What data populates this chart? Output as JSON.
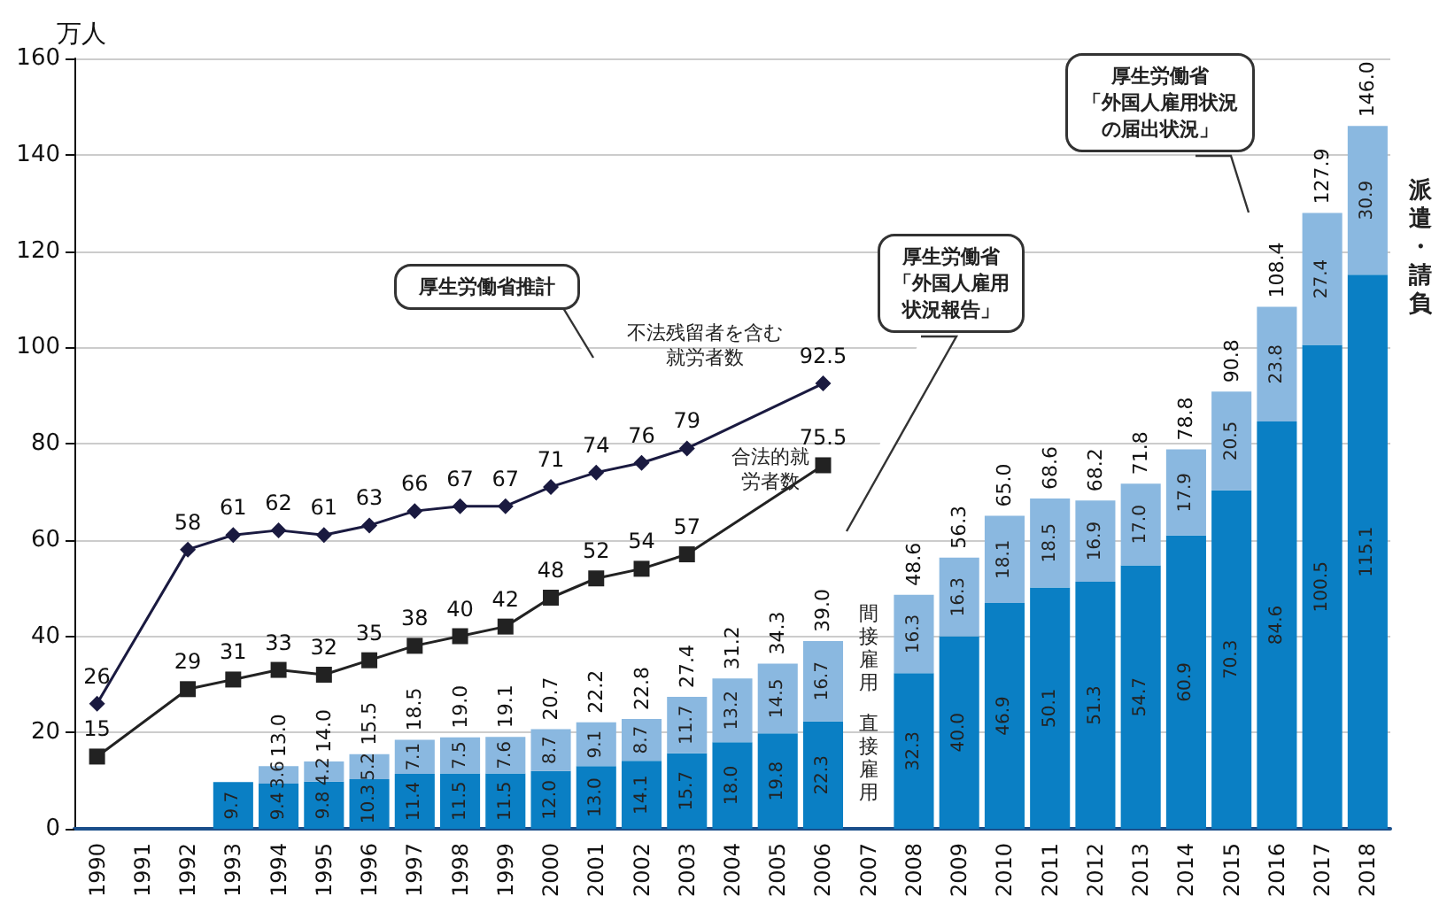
{
  "chart_data": {
    "type": "bar",
    "stacked": true,
    "ylabel": "万人",
    "categories": [
      "1990",
      "1991",
      "1992",
      "1993",
      "1994",
      "1995",
      "1996",
      "1997",
      "1998",
      "1999",
      "2000",
      "2001",
      "2002",
      "2003",
      "2004",
      "2005",
      "2006",
      "2007",
      "2008",
      "2009",
      "2010",
      "2011",
      "2012",
      "2013",
      "2014",
      "2015",
      "2016",
      "2017",
      "2018"
    ],
    "ylim": [
      0,
      160
    ],
    "yticks": [
      0,
      20,
      40,
      60,
      80,
      100,
      120,
      140,
      160
    ],
    "grid": "y",
    "legend": false,
    "series": [
      {
        "name": "直接雇用",
        "color": "#0a7fc4",
        "values": [
          null,
          null,
          null,
          9.7,
          9.4,
          9.8,
          10.3,
          11.4,
          11.5,
          11.5,
          12.0,
          13.0,
          14.1,
          15.7,
          18.0,
          19.8,
          22.3,
          null,
          32.3,
          40.0,
          46.9,
          50.1,
          51.3,
          54.7,
          60.9,
          70.3,
          84.6,
          100.5,
          115.1
        ],
        "value_labels": [
          null,
          null,
          null,
          "9.7",
          "9.4",
          "9.8",
          "10.3",
          "11.4",
          "11.5",
          "11.5",
          "12.0",
          "13.0",
          "14.1",
          "15.7",
          "18.0",
          "19.8",
          "22.3",
          null,
          "32.3",
          "40.0",
          "46.9",
          "50.1",
          "51.3",
          "54.7",
          "60.9",
          "70.3",
          "84.6",
          "100.5",
          "115.1"
        ]
      },
      {
        "name": "間接雇用",
        "color": "#8ab8e0",
        "values": [
          null,
          null,
          null,
          null,
          3.6,
          4.2,
          5.2,
          7.1,
          7.5,
          7.6,
          8.7,
          9.1,
          8.7,
          11.7,
          13.2,
          14.5,
          16.7,
          null,
          16.3,
          16.3,
          18.1,
          18.5,
          16.9,
          17.0,
          17.9,
          20.5,
          23.8,
          27.4,
          30.9
        ],
        "value_labels": [
          null,
          null,
          null,
          null,
          "3.6",
          "4.2",
          "5.2",
          "7.1",
          "7.5",
          "7.6",
          "8.7",
          "9.1",
          "8.7",
          "11.7",
          "13.2",
          "14.5",
          "16.7",
          null,
          "16.3",
          "16.3",
          "18.1",
          "18.5",
          "16.9",
          "17.0",
          "17.9",
          "20.5",
          "23.8",
          "27.4",
          "30.9"
        ]
      },
      {
        "name": "不法残留者を含む就労者数",
        "type": "line",
        "marker": "diamond",
        "color": "#1a1a40",
        "values": [
          26,
          null,
          58,
          61,
          62,
          61,
          63,
          66,
          67,
          67,
          71,
          74,
          76,
          79,
          null,
          null,
          92.5,
          null,
          null,
          null,
          null,
          null,
          null,
          null,
          null,
          null,
          null,
          null,
          null
        ],
        "value_labels": [
          "26",
          null,
          "58",
          "61",
          "62",
          "61",
          "63",
          "66",
          "67",
          "67",
          "71",
          "74",
          "76",
          "79",
          null,
          null,
          "92.5",
          null,
          null,
          null,
          null,
          null,
          null,
          null,
          null,
          null,
          null,
          null,
          null
        ]
      },
      {
        "name": "合法的就労者数",
        "type": "line",
        "marker": "square",
        "color": "#222222",
        "values": [
          15,
          null,
          29,
          31,
          33,
          32,
          35,
          38,
          40,
          42,
          48,
          52,
          54,
          57,
          null,
          null,
          75.5,
          null,
          null,
          null,
          null,
          null,
          null,
          null,
          null,
          null,
          null,
          null,
          null
        ],
        "value_labels": [
          "15",
          null,
          "29",
          "31",
          "33",
          "32",
          "35",
          "38",
          "40",
          "42",
          "48",
          "52",
          "54",
          "57",
          null,
          null,
          "75.5",
          null,
          null,
          null,
          null,
          null,
          null,
          null,
          null,
          null,
          null,
          null,
          null
        ]
      }
    ],
    "totals": [
      null,
      null,
      null,
      null,
      "13.0",
      "14.0",
      "15.5",
      "18.5",
      "19.0",
      "19.1",
      "20.7",
      "22.2",
      "22.8",
      "27.4",
      "31.2",
      "34.3",
      "39.0",
      null,
      "48.6",
      "56.3",
      "65.0",
      "68.6",
      "68.2",
      "71.8",
      "78.8",
      "90.8",
      "108.4",
      "127.9",
      "146.0"
    ],
    "annotations": [
      "厚生労働省推計",
      "厚生労働省「外国人雇用状況報告」",
      "厚生労働省「外国人雇用状況の届出状況」",
      "派遣・請負"
    ]
  }
}
